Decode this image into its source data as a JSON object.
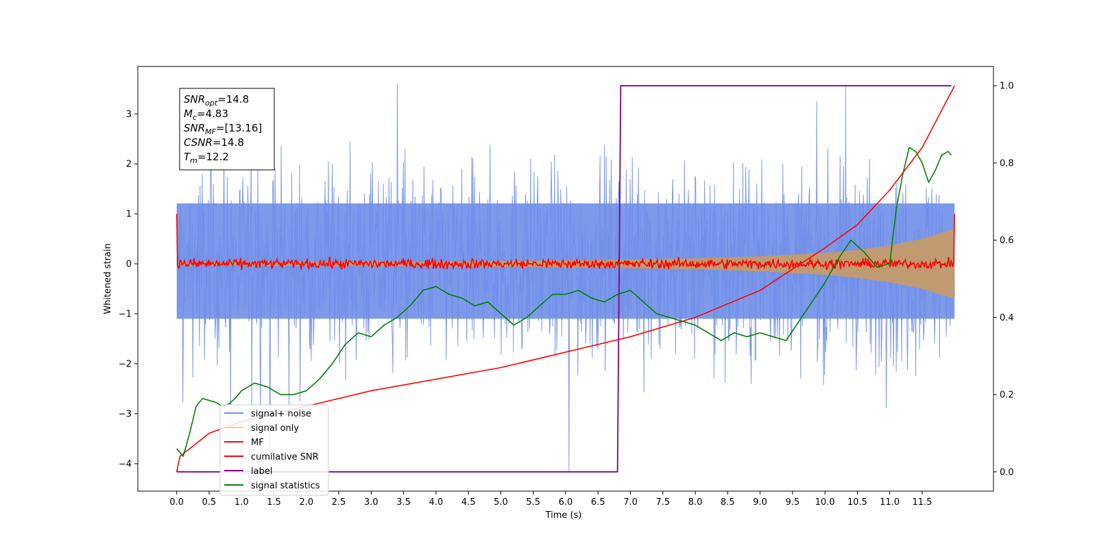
{
  "chart_data": {
    "type": "line",
    "xlabel": "Time (s)",
    "ylabel": "Whitened strain",
    "xlim": [
      -0.6,
      12.6
    ],
    "ylim": [
      -4.55,
      3.95
    ],
    "y2lim": [
      -0.05,
      1.05
    ],
    "x_ticks": [
      0.0,
      0.5,
      1.0,
      1.5,
      2.0,
      2.5,
      3.0,
      3.5,
      4.0,
      4.5,
      5.0,
      5.5,
      6.0,
      6.5,
      7.0,
      7.5,
      8.0,
      8.5,
      9.0,
      9.5,
      10.0,
      10.5,
      11.0,
      11.5
    ],
    "x_tick_labels": [
      "0.0",
      "0.5",
      "1.0",
      "1.5",
      "2.0",
      "2.5",
      "3.0",
      "3.5",
      "4.0",
      "4.5",
      "5.0",
      "5.5",
      "6.0",
      "6.5",
      "7.0",
      "7.5",
      "8.0",
      "8.5",
      "9.0",
      "9.5",
      "10.0",
      "10.5",
      "11.0",
      "11.5"
    ],
    "y_ticks": [
      -4,
      -3,
      -2,
      -1,
      0,
      1,
      2,
      3
    ],
    "y_tick_labels": [
      "−4",
      "−3",
      "−2",
      "−1",
      "0",
      "1",
      "2",
      "3"
    ],
    "y2_ticks": [
      0.0,
      0.2,
      0.4,
      0.6,
      0.8,
      1.0
    ],
    "y2_tick_labels": [
      "0.0",
      "0.2",
      "0.4",
      "0.6",
      "0.8",
      "1.0"
    ],
    "grid": false,
    "legend_position": "lower-left",
    "colors": {
      "signal_noise": "#6f8ee8",
      "signal_only": "#ffcc80",
      "signal_envelope": "#c09a70",
      "mf": "#ff0000",
      "cumulative_snr": "#ff0000",
      "label": "#800080",
      "signal_statistics": "#008000"
    },
    "series": [
      {
        "name": "signal+ noise",
        "axis": "left",
        "style": "noise band",
        "x_range": [
          0.0,
          12.0
        ],
        "typical_range": [
          -2.0,
          2.2
        ],
        "extreme_range": [
          -4.15,
          3.6
        ]
      },
      {
        "name": "signal only",
        "axis": "left",
        "style": "chirp envelope",
        "x_range": [
          0.0,
          12.0
        ],
        "envelope": {
          "x": [
            0.0,
            2.0,
            4.0,
            6.0,
            8.0,
            9.0,
            10.0,
            10.5,
            11.0,
            11.5,
            12.0
          ],
          "amplitude": [
            0.03,
            0.04,
            0.05,
            0.07,
            0.11,
            0.15,
            0.22,
            0.28,
            0.37,
            0.5,
            0.7
          ]
        }
      },
      {
        "name": "MF",
        "axis": "left",
        "style": "noisy line",
        "x_range": [
          0.0,
          12.0
        ],
        "edge_values": {
          "start": 1.0,
          "end": 1.0
        },
        "noise_amplitude": 0.08,
        "mean": 0.0
      },
      {
        "name": "cumilative SNR",
        "axis": "right",
        "x": [
          0.0,
          0.05,
          0.5,
          1.0,
          2.0,
          3.0,
          4.0,
          5.0,
          6.0,
          7.0,
          8.0,
          9.0,
          10.0,
          10.5,
          11.0,
          11.5,
          12.0
        ],
        "values": [
          0.0,
          0.04,
          0.1,
          0.13,
          0.17,
          0.21,
          0.24,
          0.27,
          0.31,
          0.35,
          0.4,
          0.47,
          0.58,
          0.64,
          0.73,
          0.84,
          1.0
        ]
      },
      {
        "name": "label",
        "axis": "right",
        "x": [
          0.0,
          6.8,
          6.85,
          11.95
        ],
        "values": [
          0.0,
          0.0,
          1.0,
          1.0
        ]
      },
      {
        "name": "signal statistics",
        "axis": "right",
        "x": [
          0.0,
          0.1,
          0.2,
          0.3,
          0.4,
          0.5,
          0.6,
          0.7,
          0.8,
          0.9,
          1.0,
          1.2,
          1.4,
          1.6,
          1.8,
          2.0,
          2.2,
          2.4,
          2.6,
          2.8,
          3.0,
          3.2,
          3.4,
          3.6,
          3.8,
          4.0,
          4.2,
          4.4,
          4.6,
          4.8,
          5.0,
          5.2,
          5.4,
          5.6,
          5.8,
          6.0,
          6.2,
          6.4,
          6.6,
          6.8,
          7.0,
          7.2,
          7.4,
          7.6,
          7.8,
          8.0,
          8.2,
          8.4,
          8.6,
          8.8,
          9.0,
          9.2,
          9.4,
          9.6,
          9.8,
          10.0,
          10.2,
          10.4,
          10.6,
          10.8,
          11.0,
          11.1,
          11.2,
          11.3,
          11.4,
          11.5,
          11.6,
          11.7,
          11.8,
          11.9,
          11.95
        ],
        "values": [
          0.06,
          0.04,
          0.1,
          0.17,
          0.19,
          0.185,
          0.18,
          0.17,
          0.175,
          0.19,
          0.21,
          0.23,
          0.22,
          0.2,
          0.2,
          0.21,
          0.24,
          0.28,
          0.33,
          0.36,
          0.35,
          0.38,
          0.4,
          0.43,
          0.47,
          0.48,
          0.46,
          0.45,
          0.43,
          0.44,
          0.41,
          0.38,
          0.4,
          0.43,
          0.46,
          0.46,
          0.47,
          0.45,
          0.44,
          0.46,
          0.47,
          0.44,
          0.41,
          0.4,
          0.39,
          0.38,
          0.36,
          0.34,
          0.36,
          0.35,
          0.36,
          0.35,
          0.34,
          0.39,
          0.44,
          0.49,
          0.55,
          0.6,
          0.57,
          0.53,
          0.54,
          0.68,
          0.77,
          0.84,
          0.83,
          0.8,
          0.75,
          0.78,
          0.82,
          0.83,
          0.82
        ]
      }
    ],
    "annotation": {
      "lines": [
        {
          "base": "SNR",
          "sub": "opt",
          "value": "=14.8"
        },
        {
          "base": "M",
          "sub": "c",
          "value": "=4.83"
        },
        {
          "base": "SNR",
          "sub": "MF",
          "value": "=[13.16]"
        },
        {
          "base": "CSNR",
          "sub": "",
          "value": "=14.8"
        },
        {
          "base": "T",
          "sub": "m",
          "value": "=12.2"
        }
      ]
    }
  }
}
